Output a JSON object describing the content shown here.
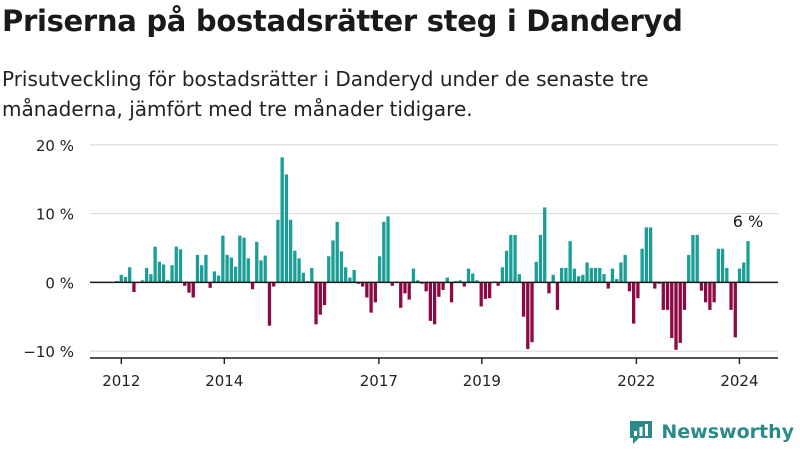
{
  "title": "Priserna på bostadsrätter steg i Danderyd",
  "subtitle": "Prisutveckling för bostadsrätter i Danderyd under de senaste tre månaderna, jämfört med tre månader tidigare.",
  "brand": "Newsworthy",
  "colors": {
    "positive": "#1a9e96",
    "negative": "#8c0a44",
    "axis": "#1a1a1a",
    "grid": "#d6d6d6",
    "brand": "#2b8a8a"
  },
  "chart_data": {
    "type": "bar",
    "ylabel": "",
    "xlabel": "",
    "ylim": [
      -11,
      21
    ],
    "yticks": [
      {
        "value": 20,
        "label": "20 %"
      },
      {
        "value": 10,
        "label": "10 %"
      },
      {
        "value": 0,
        "label": "0 %"
      },
      {
        "value": -10,
        "label": "−10 %"
      }
    ],
    "xticks": [
      {
        "year": 2012,
        "label": "2012"
      },
      {
        "year": 2014,
        "label": "2014"
      },
      {
        "year": 2017,
        "label": "2017"
      },
      {
        "year": 2019,
        "label": "2019"
      },
      {
        "year": 2022,
        "label": "2022"
      },
      {
        "year": 2024,
        "label": "2024"
      }
    ],
    "grid": true,
    "x_start": "2011-12",
    "x_end": "2024-03",
    "annotation": {
      "text": "6 %",
      "at": "last"
    },
    "values": [
      0.2,
      1.1,
      0.8,
      2.2,
      -1.4,
      0.0,
      0.3,
      2.1,
      1.2,
      5.2,
      3.0,
      2.6,
      0.3,
      2.5,
      5.2,
      4.8,
      -0.5,
      -1.5,
      -2.2,
      4.0,
      2.5,
      4.0,
      -0.8,
      1.6,
      1.0,
      6.8,
      4.0,
      3.6,
      2.3,
      6.8,
      6.5,
      3.5,
      -1.0,
      5.9,
      3.2,
      3.9,
      -6.3,
      -0.6,
      9.1,
      18.2,
      15.7,
      9.1,
      4.6,
      3.5,
      1.4,
      0.2,
      2.1,
      -6.1,
      -4.7,
      -3.3,
      3.8,
      6.1,
      8.8,
      4.5,
      2.2,
      0.7,
      1.8,
      -0.2,
      -0.6,
      -2.2,
      -4.4,
      -2.9,
      3.8,
      8.8,
      9.6,
      -0.5,
      0.1,
      -3.7,
      -1.6,
      -2.5,
      2.0,
      0.3,
      -0.2,
      -1.3,
      -5.6,
      -6.1,
      -2.1,
      -1.1,
      0.7,
      -2.9,
      0.2,
      0.3,
      -0.6,
      2.0,
      1.3,
      0.3,
      -3.5,
      -2.4,
      -2.3,
      0.1,
      -0.5,
      2.2,
      4.6,
      6.9,
      6.9,
      1.2,
      -5.0,
      -9.7,
      -8.7,
      3.0,
      6.9,
      10.9,
      -1.6,
      1.1,
      -4.0,
      2.1,
      2.1,
      6.0,
      2.0,
      0.9,
      1.1,
      2.9,
      2.1,
      2.1,
      2.1,
      1.2,
      -0.9,
      2.0,
      0.5,
      2.9,
      4.0,
      -1.3,
      -6.0,
      -2.3,
      4.9,
      8.0,
      8.0,
      -0.9,
      -0.2,
      -4.0,
      -4.0,
      -8.1,
      -9.8,
      -8.8,
      -4.0,
      4.0,
      6.9,
      6.9,
      -1.2,
      -2.9,
      -4.0,
      -2.9,
      4.9,
      4.9,
      2.1,
      -4.0,
      -8.0,
      2.0,
      2.9,
      6.0
    ]
  }
}
